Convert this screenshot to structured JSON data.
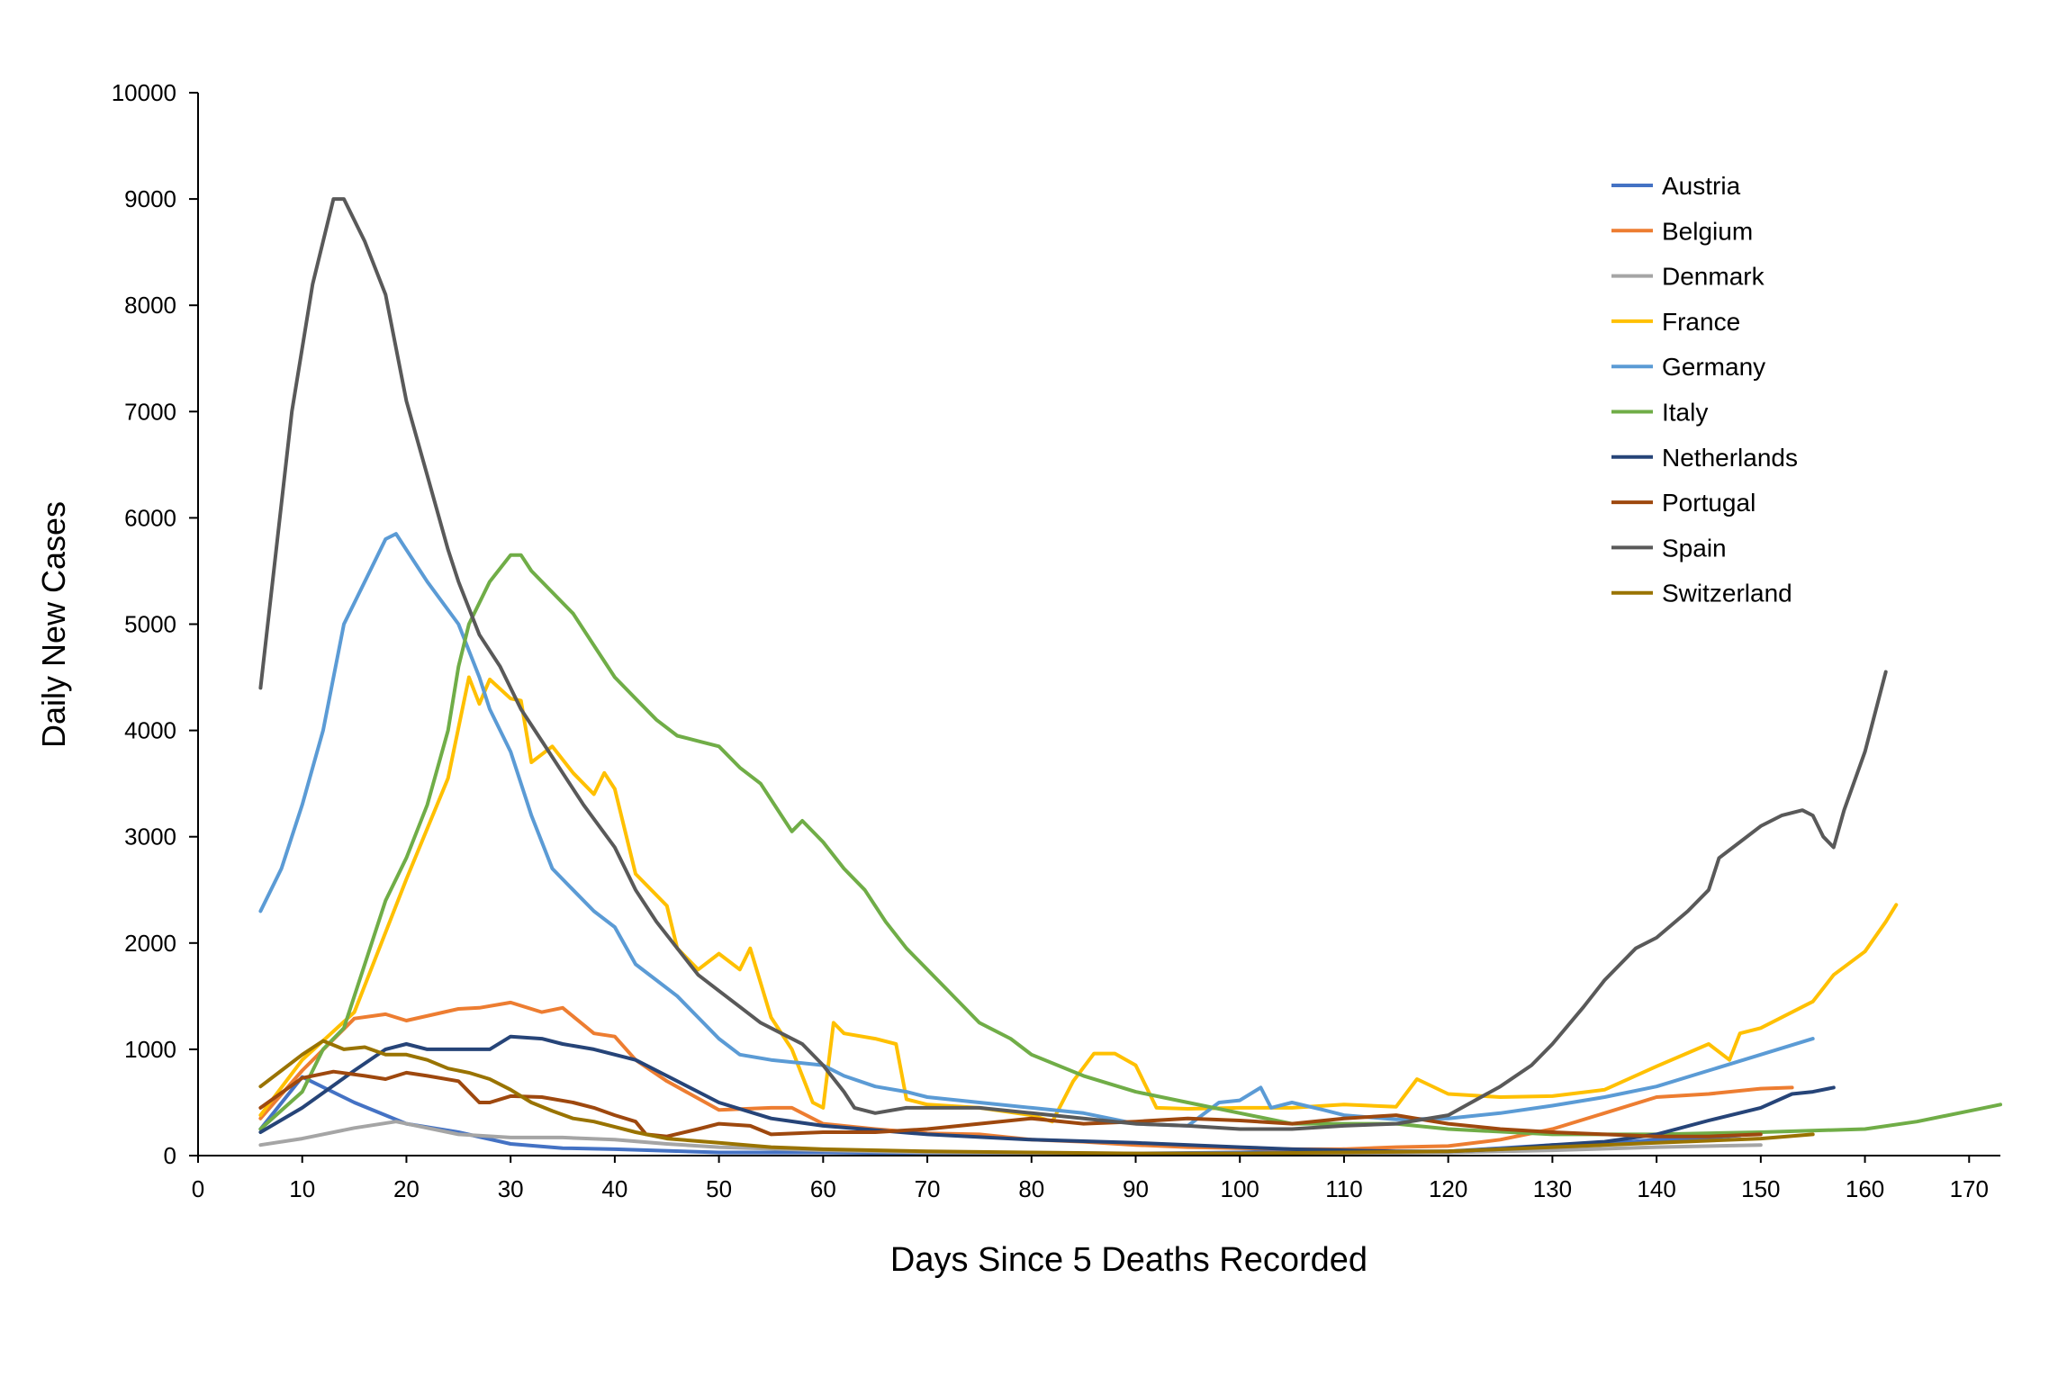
{
  "chart_data": {
    "type": "line",
    "title": "",
    "xlabel": "Days Since 5 Deaths Recorded",
    "ylabel": "Daily New Cases",
    "xlim": [
      0,
      173
    ],
    "ylim": [
      0,
      10000
    ],
    "xticks": [
      0,
      10,
      20,
      30,
      40,
      50,
      60,
      70,
      80,
      90,
      100,
      110,
      120,
      130,
      140,
      150,
      160,
      170
    ],
    "yticks": [
      0,
      1000,
      2000,
      3000,
      4000,
      5000,
      6000,
      7000,
      8000,
      9000,
      10000
    ],
    "grid": false,
    "legend": "right",
    "series": [
      {
        "name": "Austria",
        "color": "#4472C4",
        "x": [
          6,
          10,
          15,
          20,
          25,
          30,
          35,
          40,
          50,
          60,
          70,
          80,
          90,
          100,
          110,
          115,
          120,
          125,
          130,
          135,
          140,
          145,
          148
        ],
        "y": [
          250,
          740,
          500,
          300,
          220,
          110,
          70,
          60,
          30,
          30,
          20,
          20,
          20,
          30,
          60,
          30,
          40,
          70,
          100,
          110,
          150,
          170,
          190
        ]
      },
      {
        "name": "Belgium",
        "color": "#ED7D31",
        "x": [
          6,
          10,
          15,
          18,
          20,
          25,
          27,
          30,
          33,
          35,
          38,
          40,
          42,
          45,
          50,
          55,
          57,
          60,
          65,
          70,
          75,
          80,
          85,
          90,
          95,
          100,
          105,
          110,
          115,
          120,
          125,
          130,
          135,
          140,
          145,
          150,
          153
        ],
        "y": [
          350,
          800,
          1290,
          1330,
          1270,
          1380,
          1390,
          1440,
          1350,
          1390,
          1150,
          1120,
          900,
          700,
          430,
          450,
          450,
          300,
          250,
          210,
          200,
          150,
          130,
          100,
          80,
          70,
          60,
          60,
          80,
          90,
          150,
          250,
          400,
          550,
          580,
          630,
          640
        ]
      },
      {
        "name": "Denmark",
        "color": "#A5A5A5",
        "x": [
          6,
          10,
          15,
          19,
          25,
          30,
          35,
          40,
          45,
          50,
          60,
          70,
          80,
          90,
          100,
          110,
          120,
          130,
          140,
          150
        ],
        "y": [
          100,
          160,
          260,
          320,
          200,
          170,
          170,
          150,
          110,
          80,
          50,
          30,
          25,
          20,
          20,
          20,
          30,
          50,
          80,
          100
        ]
      },
      {
        "name": "France",
        "color": "#FFC000",
        "x": [
          6,
          10,
          15,
          20,
          24,
          26,
          27,
          28,
          30,
          31,
          32,
          34,
          36,
          38,
          39,
          40,
          42,
          45,
          46,
          48,
          50,
          52,
          53,
          55,
          57,
          59,
          60,
          61,
          62,
          65,
          67,
          68,
          70,
          75,
          80,
          82,
          84,
          86,
          88,
          90,
          92,
          95,
          100,
          105,
          110,
          115,
          117,
          120,
          125,
          130,
          135,
          140,
          145,
          147,
          148,
          150,
          155,
          157,
          160,
          162,
          163
        ],
        "y": [
          380,
          900,
          1350,
          2600,
          3550,
          4500,
          4250,
          4480,
          4300,
          4280,
          3700,
          3850,
          3600,
          3400,
          3600,
          3450,
          2650,
          2350,
          1950,
          1750,
          1900,
          1750,
          1950,
          1300,
          1000,
          500,
          450,
          1250,
          1150,
          1100,
          1050,
          530,
          480,
          450,
          380,
          320,
          700,
          960,
          960,
          850,
          450,
          440,
          450,
          450,
          480,
          460,
          720,
          580,
          550,
          560,
          620,
          840,
          1050,
          900,
          1150,
          1200,
          1450,
          1700,
          1920,
          2200,
          2360
        ]
      },
      {
        "name": "Germany",
        "color": "#5B9BD5",
        "x": [
          6,
          8,
          10,
          12,
          14,
          16,
          18,
          19,
          20,
          22,
          25,
          27,
          28,
          30,
          32,
          34,
          36,
          38,
          40,
          42,
          44,
          46,
          48,
          50,
          52,
          55,
          57,
          60,
          62,
          65,
          68,
          70,
          75,
          80,
          85,
          90,
          95,
          98,
          100,
          102,
          103,
          105,
          108,
          110,
          115,
          120,
          125,
          130,
          135,
          140,
          145,
          150,
          155
        ],
        "y": [
          2300,
          2700,
          3300,
          4000,
          5000,
          5400,
          5800,
          5850,
          5700,
          5400,
          5000,
          4500,
          4200,
          3800,
          3200,
          2700,
          2500,
          2300,
          2150,
          1800,
          1650,
          1500,
          1300,
          1100,
          950,
          900,
          880,
          850,
          750,
          650,
          600,
          550,
          500,
          450,
          400,
          300,
          280,
          500,
          520,
          640,
          450,
          500,
          430,
          380,
          340,
          350,
          400,
          470,
          550,
          650,
          800,
          950,
          1100
        ]
      },
      {
        "name": "Italy",
        "color": "#70AD47",
        "x": [
          6,
          10,
          12,
          14,
          16,
          18,
          20,
          22,
          24,
          25,
          26,
          28,
          30,
          31,
          32,
          34,
          36,
          38,
          40,
          42,
          44,
          46,
          48,
          50,
          52,
          54,
          56,
          57,
          58,
          60,
          62,
          64,
          66,
          68,
          70,
          72,
          75,
          78,
          80,
          85,
          90,
          95,
          100,
          105,
          110,
          115,
          120,
          130,
          140,
          150,
          160,
          165,
          170,
          173
        ],
        "y": [
          250,
          600,
          1000,
          1200,
          1800,
          2400,
          2800,
          3300,
          4000,
          4600,
          5000,
          5400,
          5650,
          5650,
          5500,
          5300,
          5100,
          4800,
          4500,
          4300,
          4100,
          3950,
          3900,
          3850,
          3650,
          3500,
          3200,
          3050,
          3150,
          2950,
          2700,
          2500,
          2200,
          1950,
          1750,
          1550,
          1250,
          1100,
          950,
          750,
          600,
          500,
          400,
          300,
          300,
          300,
          250,
          200,
          200,
          220,
          250,
          320,
          420,
          480
        ]
      },
      {
        "name": "Netherlands",
        "color": "#264478",
        "x": [
          6,
          10,
          15,
          18,
          20,
          22,
          25,
          28,
          30,
          33,
          35,
          38,
          40,
          42,
          45,
          48,
          50,
          55,
          60,
          70,
          80,
          90,
          100,
          105,
          110,
          115,
          120,
          125,
          130,
          135,
          140,
          145,
          150,
          153,
          155,
          157
        ],
        "y": [
          220,
          450,
          800,
          1000,
          1050,
          1000,
          1000,
          1000,
          1120,
          1100,
          1050,
          1000,
          950,
          900,
          750,
          600,
          500,
          350,
          280,
          200,
          150,
          120,
          80,
          60,
          50,
          40,
          40,
          60,
          100,
          130,
          200,
          330,
          450,
          580,
          600,
          640
        ]
      },
      {
        "name": "Portugal",
        "color": "#9E480E",
        "x": [
          6,
          10,
          13,
          16,
          18,
          20,
          22,
          25,
          27,
          28,
          30,
          33,
          36,
          38,
          40,
          42,
          43,
          45,
          48,
          50,
          53,
          55,
          60,
          65,
          70,
          75,
          80,
          85,
          90,
          95,
          100,
          105,
          110,
          115,
          120,
          125,
          130,
          135,
          140,
          145,
          150
        ],
        "y": [
          450,
          730,
          790,
          750,
          720,
          780,
          750,
          700,
          500,
          500,
          560,
          550,
          500,
          450,
          380,
          320,
          200,
          180,
          250,
          300,
          280,
          200,
          220,
          220,
          250,
          300,
          350,
          300,
          320,
          350,
          330,
          300,
          350,
          380,
          300,
          250,
          220,
          200,
          180,
          180,
          200
        ]
      },
      {
        "name": "Spain",
        "color": "#595959",
        "x": [
          6,
          9,
          11,
          13,
          14,
          16,
          18,
          20,
          22,
          24,
          25,
          27,
          29,
          31,
          33,
          35,
          37,
          40,
          42,
          44,
          46,
          48,
          50,
          52,
          54,
          56,
          58,
          60,
          62,
          63,
          65,
          68,
          70,
          75,
          80,
          85,
          90,
          95,
          100,
          105,
          110,
          115,
          120,
          125,
          128,
          130,
          133,
          135,
          138,
          140,
          143,
          145,
          146,
          148,
          150,
          152,
          154,
          155,
          156,
          157,
          158,
          160,
          162
        ],
        "y": [
          4400,
          7000,
          8200,
          9000,
          9000,
          8600,
          8100,
          7100,
          6400,
          5700,
          5400,
          4900,
          4600,
          4200,
          3900,
          3600,
          3300,
          2900,
          2500,
          2200,
          1950,
          1700,
          1550,
          1400,
          1250,
          1150,
          1050,
          850,
          600,
          450,
          400,
          450,
          450,
          450,
          400,
          350,
          300,
          280,
          250,
          250,
          280,
          300,
          380,
          650,
          850,
          1050,
          1400,
          1650,
          1950,
          2050,
          2300,
          2500,
          2800,
          2950,
          3100,
          3200,
          3250,
          3200,
          3000,
          2900,
          3250,
          3800,
          4550
        ]
      },
      {
        "name": "Switzerland",
        "color": "#997300",
        "x": [
          6,
          8,
          10,
          12,
          14,
          16,
          18,
          20,
          22,
          24,
          26,
          28,
          30,
          32,
          34,
          36,
          38,
          40,
          42,
          45,
          50,
          55,
          60,
          70,
          80,
          90,
          100,
          110,
          120,
          130,
          140,
          150,
          155
        ],
        "y": [
          650,
          800,
          950,
          1080,
          1000,
          1020,
          950,
          950,
          900,
          820,
          780,
          720,
          620,
          500,
          420,
          350,
          320,
          270,
          220,
          160,
          120,
          80,
          60,
          40,
          30,
          20,
          20,
          30,
          40,
          80,
          120,
          160,
          200
        ]
      }
    ]
  }
}
